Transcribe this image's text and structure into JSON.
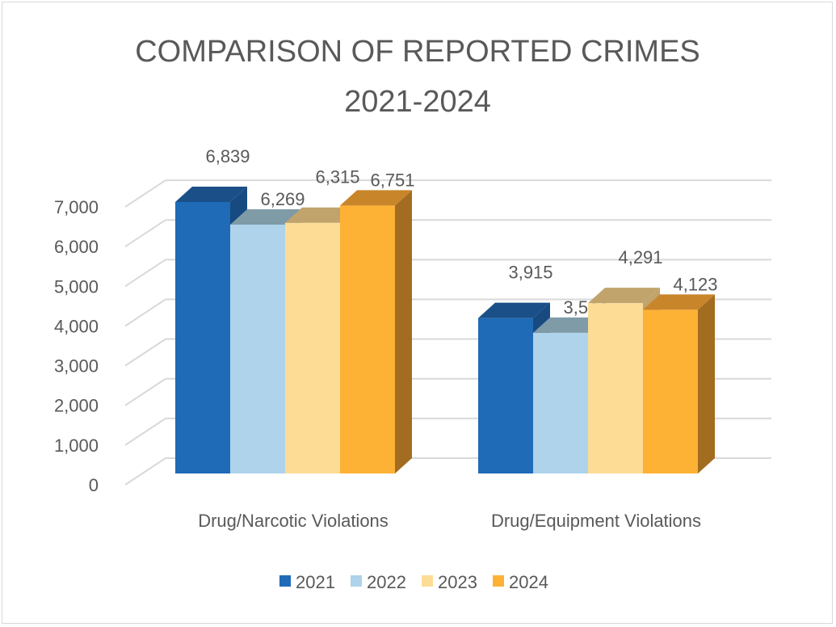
{
  "chart_data": {
    "type": "bar",
    "title_lines": [
      "COMPARISON OF REPORTED CRIMES",
      "2021-2024"
    ],
    "categories": [
      "Drug/Narcotic Violations",
      "Drug/Equipment Violations"
    ],
    "series": [
      {
        "name": "2021",
        "values": [
          6839,
          3915
        ],
        "labels": [
          "6,839",
          "3,915"
        ],
        "color": "#1f6bb8",
        "top": "#1b4f88",
        "side": "#174a80"
      },
      {
        "name": "2022",
        "values": [
          6269,
          3544
        ],
        "labels": [
          "6,269",
          "3,544"
        ],
        "color": "#aed3ea",
        "top": "#7f9ba8",
        "side": "#7f9ba8"
      },
      {
        "name": "2023",
        "values": [
          6315,
          4291
        ],
        "labels": [
          "6,315",
          "4,291"
        ],
        "color": "#fddc96",
        "top": "#c0a46c",
        "side": "#c0a46c"
      },
      {
        "name": "2024",
        "values": [
          6751,
          4123
        ],
        "labels": [
          "6,751",
          "4,123"
        ],
        "color": "#fdb236",
        "top": "#c8852a",
        "side": "#a26d20"
      }
    ],
    "yticks": [
      0,
      1000,
      2000,
      3000,
      4000,
      5000,
      6000,
      7000
    ],
    "ytick_labels": [
      "0",
      "1,000",
      "2,000",
      "3,000",
      "4,000",
      "5,000",
      "6,000",
      "7,000"
    ],
    "ylim": [
      0,
      7000
    ],
    "grid": true,
    "legend": "bottom",
    "xlabel": "",
    "ylabel": ""
  }
}
